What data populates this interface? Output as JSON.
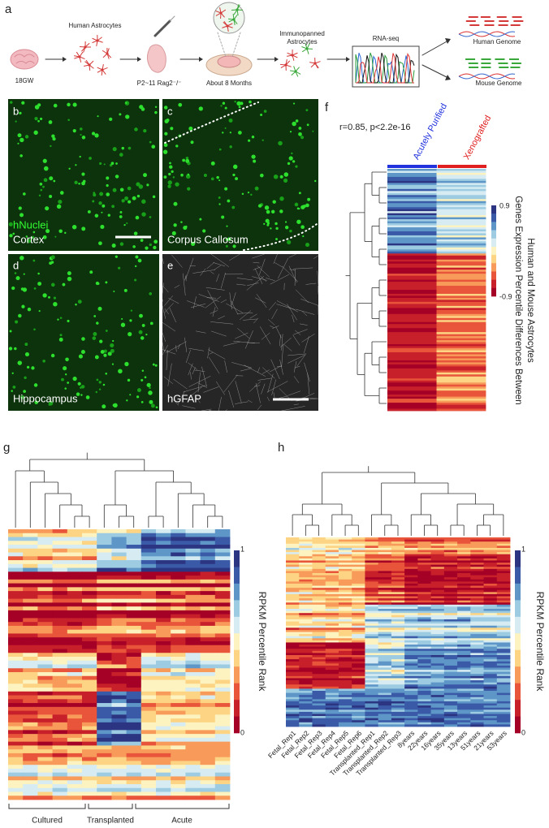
{
  "panels": {
    "a": {
      "label": "a",
      "start": "18GW",
      "cells": "Human Astrocytes",
      "host": "P2~11 Rag2⁻/⁻",
      "wait": "About 8 Months",
      "purified": [
        "Immunopanned",
        "Astrocytes"
      ],
      "seq": "RNA-seq",
      "human": "Human Genome",
      "mouse": "Mouse Genome"
    },
    "b": {
      "label": "b",
      "stain": "hNuclei",
      "region": "Cortex"
    },
    "c": {
      "label": "c",
      "region": "Corpus Callosum"
    },
    "d": {
      "label": "d",
      "region": "Hippocampus"
    },
    "e": {
      "label": "e",
      "stain": "hGFAP"
    },
    "f": {
      "label": "f",
      "stats": "r=0.85, p<2.2e-16",
      "columns": [
        "Acutely Purified",
        "Xenografted"
      ],
      "colorbar_ticks": [
        0.9,
        -0.9
      ],
      "colorbar_title": [
        "Genes Expression Percentile Differences Between",
        "Human and Mouse Astrocytes"
      ]
    },
    "g": {
      "label": "g",
      "colorbar_ticks": [
        1,
        0
      ],
      "colorbar_title": "RPKM Percentile Rank",
      "groups": [
        "Cultured",
        "Transplanted",
        "Acute"
      ]
    },
    "h": {
      "label": "h",
      "colorbar_ticks": [
        1,
        0
      ],
      "colorbar_title": "RPKM Percentile Rank",
      "samples": [
        "Fetal_Rep1",
        "Fetal_Rep2",
        "Fetal_Rep3",
        "Fetal_Rep4",
        "Fetal_Rep5",
        "Fetal_Rep6",
        "Transplanted_Rep1",
        "Transplanted_Rep2",
        "Transplanted_Rep3",
        "8years",
        "22years",
        "16years",
        "35years",
        "13years",
        "51years",
        "21years",
        "53years"
      ]
    }
  }
}
